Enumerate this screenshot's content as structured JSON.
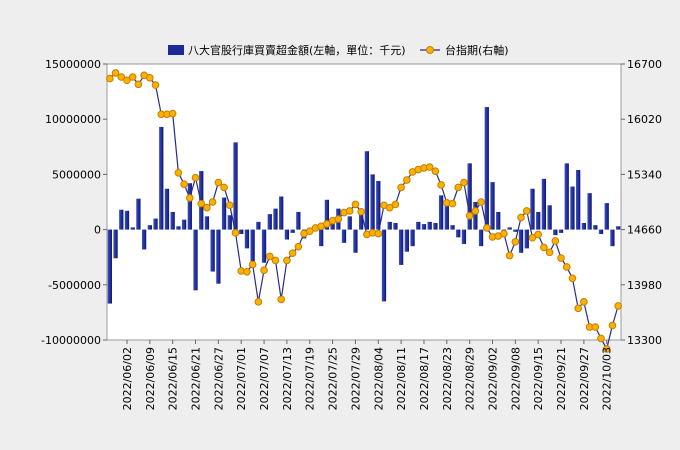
{
  "chart_data": {
    "type": "bar",
    "legend": {
      "placement": "top-center",
      "bar_series_label": "八大官股行庫買賣超金額(左軸，單位：千元)",
      "line_series_label": "台指期(右軸)"
    },
    "left_axis": {
      "ylim": [
        -10000000,
        15000000
      ],
      "ticks": [
        "15000000",
        "10000000",
        "5000000",
        "0",
        "-5000000",
        "-10000000"
      ],
      "tick_values": [
        15000000,
        10000000,
        5000000,
        0,
        -5000000,
        -10000000
      ]
    },
    "right_axis": {
      "ylim": [
        13300,
        16700
      ],
      "ticks": [
        "16700",
        "16020",
        "15340",
        "14660",
        "13980",
        "13300"
      ],
      "tick_values": [
        16700,
        16020,
        15340,
        14660,
        13980,
        13300
      ]
    },
    "x_tick_labels": [
      {
        "index": 3,
        "label": "2022/06/02"
      },
      {
        "index": 7,
        "label": "2022/06/09"
      },
      {
        "index": 11,
        "label": "2022/06/15"
      },
      {
        "index": 15,
        "label": "2022/06/21"
      },
      {
        "index": 19,
        "label": "2022/06/27"
      },
      {
        "index": 23,
        "label": "2022/07/01"
      },
      {
        "index": 27,
        "label": "2022/07/07"
      },
      {
        "index": 31,
        "label": "2022/07/13"
      },
      {
        "index": 35,
        "label": "2022/07/19"
      },
      {
        "index": 39,
        "label": "2022/07/25"
      },
      {
        "index": 43,
        "label": "2022/07/29"
      },
      {
        "index": 47,
        "label": "2022/08/04"
      },
      {
        "index": 51,
        "label": "2022/08/11"
      },
      {
        "index": 55,
        "label": "2022/08/17"
      },
      {
        "index": 59,
        "label": "2022/08/23"
      },
      {
        "index": 63,
        "label": "2022/08/29"
      },
      {
        "index": 67,
        "label": "2022/09/02"
      },
      {
        "index": 71,
        "label": "2022/09/08"
      },
      {
        "index": 75,
        "label": "2022/09/15"
      },
      {
        "index": 79,
        "label": "2022/09/21"
      },
      {
        "index": 83,
        "label": "2022/09/27"
      },
      {
        "index": 87,
        "label": "2022/10/03"
      }
    ],
    "series": [
      {
        "name": "八大官股行庫買賣超金額(左軸，單位：千元)",
        "type": "bar",
        "axis": "left",
        "values": [
          -6700000,
          -2600000,
          1800000,
          1700000,
          200000,
          2800000,
          -1800000,
          400000,
          1000000,
          9300000,
          3700000,
          1600000,
          300000,
          900000,
          4200000,
          -5500000,
          5300000,
          1200000,
          -3800000,
          -4900000,
          2900000,
          1300000,
          7900000,
          -400000,
          -1700000,
          -3300000,
          700000,
          -3000000,
          1400000,
          1900000,
          3000000,
          -900000,
          -300000,
          1600000,
          -800000,
          100000,
          300000,
          -1500000,
          2700000,
          800000,
          1900000,
          -1200000,
          1200000,
          -2100000,
          1600000,
          7100000,
          5000000,
          4400000,
          -6500000,
          700000,
          600000,
          -3200000,
          -2000000,
          -1500000,
          700000,
          500000,
          700000,
          600000,
          3100000,
          2600000,
          400000,
          -700000,
          -1300000,
          6000000,
          2500000,
          -1500000,
          11100000,
          4300000,
          1600000,
          -600000,
          200000,
          -200000,
          -2100000,
          -1700000,
          3700000,
          1600000,
          4600000,
          2200000,
          -500000,
          -300000,
          6000000,
          3900000,
          5400000,
          600000,
          3300000,
          400000,
          -400000,
          2400000,
          -1500000,
          300000
        ]
      },
      {
        "name": "台指期(右軸)",
        "type": "line",
        "axis": "right",
        "values": [
          16520,
          16590,
          16540,
          16500,
          16540,
          16450,
          16560,
          16530,
          16440,
          16080,
          16080,
          16090,
          15360,
          15220,
          15050,
          15300,
          14980,
          14930,
          15000,
          15240,
          15180,
          14960,
          14620,
          14150,
          14140,
          14230,
          13770,
          14160,
          14330,
          14280,
          13800,
          14280,
          14370,
          14450,
          14610,
          14640,
          14680,
          14700,
          14730,
          14770,
          14790,
          14870,
          14890,
          14970,
          14880,
          14600,
          14620,
          14610,
          14960,
          14930,
          14970,
          15180,
          15270,
          15370,
          15400,
          15420,
          15430,
          15380,
          15210,
          14990,
          14980,
          15180,
          15240,
          14830,
          14890,
          15000,
          14680,
          14570,
          14580,
          14610,
          14340,
          14510,
          14810,
          14890,
          14560,
          14600,
          14440,
          14380,
          14520,
          14310,
          14200,
          14060,
          13690,
          13770,
          13460,
          13460,
          13320,
          13190,
          13480,
          13720
        ]
      }
    ],
    "grid": false
  }
}
